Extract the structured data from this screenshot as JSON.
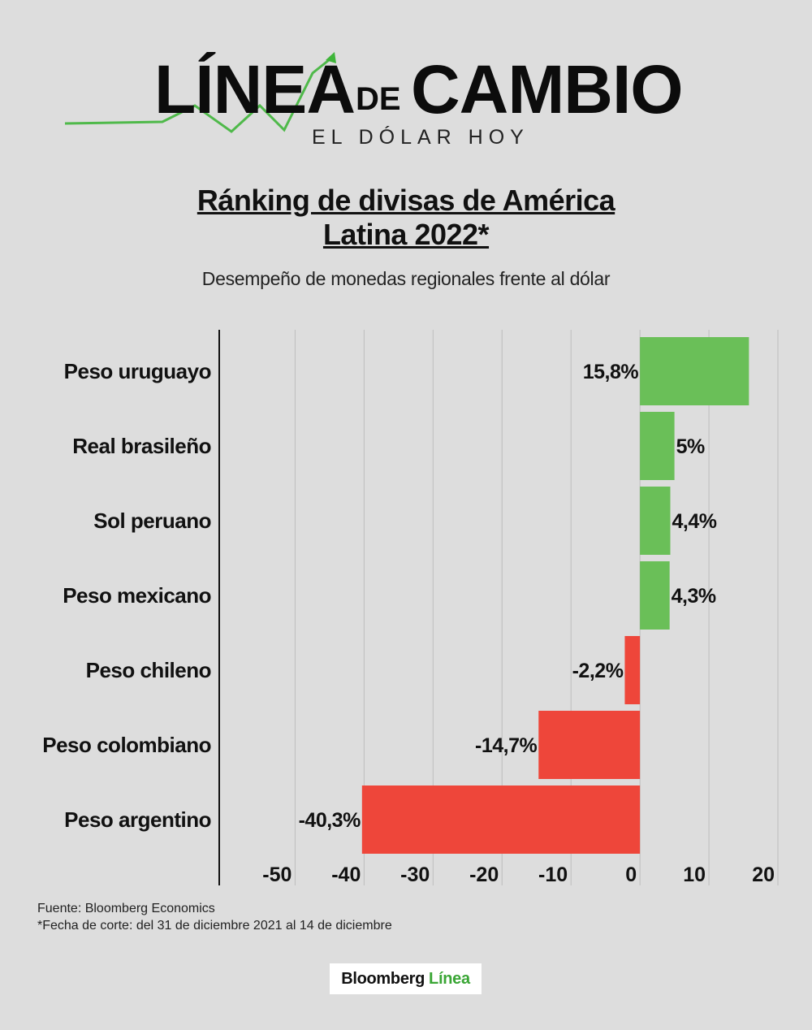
{
  "header": {
    "logo_word1": "LÍNEA",
    "logo_word2": "DE",
    "logo_word3": "CAMBIO",
    "logo_subtitle": "EL DÓLAR HOY"
  },
  "title_line1": "Ránking de divisas de América",
  "title_line2": "Latina 2022*",
  "subtitle": "Desempeño de monedas regionales frente al dólar",
  "colors": {
    "positive": "#6abf58",
    "negative": "#ee463a",
    "grid": "#bdbdbd",
    "axis": "#111111",
    "logo_arrow": "#3fb53a"
  },
  "chart_data": {
    "type": "bar",
    "orientation": "horizontal",
    "categories": [
      "Peso uruguayo",
      "Real brasileño",
      "Sol peruano",
      "Peso mexicano",
      "Peso chileno",
      "Peso colombiano",
      "Peso argentino"
    ],
    "values": [
      15.8,
      5,
      4.4,
      4.3,
      -2.2,
      -14.7,
      -40.3
    ],
    "data_labels": [
      "15,8%",
      "5%",
      "4,4%",
      "4,3%",
      "-2,2%",
      "-14,7%",
      "-40,3%"
    ],
    "x_ticks": [
      -50,
      -40,
      -30,
      -20,
      -10,
      0,
      10,
      20
    ],
    "x_tick_labels": [
      "-50",
      "-40",
      "-30",
      "-20",
      "-10",
      "0",
      "10",
      "20"
    ],
    "xlim": [
      -61,
      20
    ],
    "grid": true
  },
  "footer": {
    "source": "Fuente: Bloomberg Economics",
    "note": "*Fecha de corte: del 31 de diciembre 2021 al 14 de diciembre"
  },
  "brand": {
    "part1": "Bloomberg",
    "part2": "Línea"
  }
}
